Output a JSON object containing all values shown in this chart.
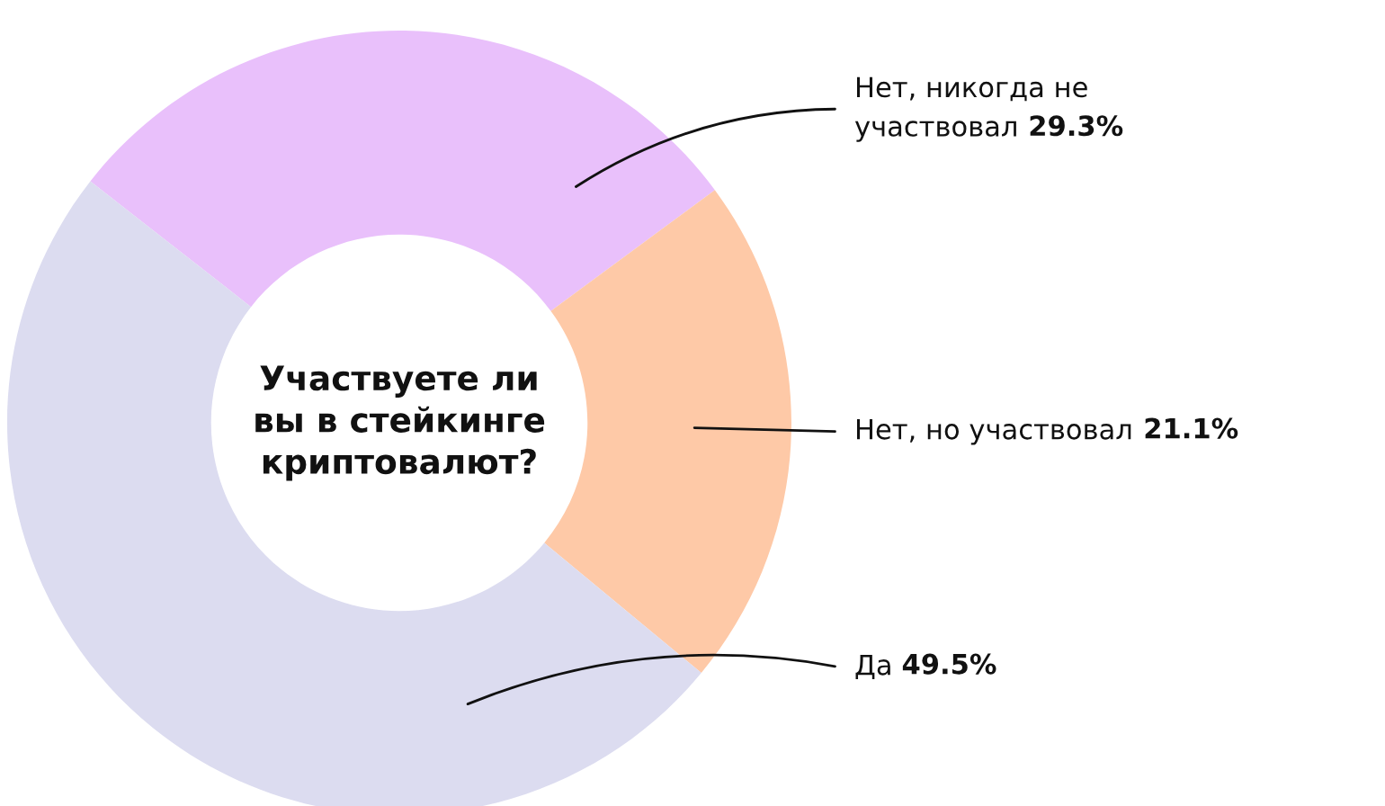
{
  "chart_data": {
    "type": "donut",
    "title": "Участвуете ли\nвы в стейкинге\nкриптовалют?",
    "categories": [
      "Нет, никогда не\nучаствовал",
      "Нет, но участвовал",
      "Да"
    ],
    "values": [
      29.3,
      21.1,
      49.5
    ],
    "value_labels": [
      "29.3%",
      "21.1%",
      "49.5%"
    ],
    "colors": [
      "#e9c0fb",
      "#fec9a7",
      "#dcdcf0"
    ],
    "legend": false
  }
}
